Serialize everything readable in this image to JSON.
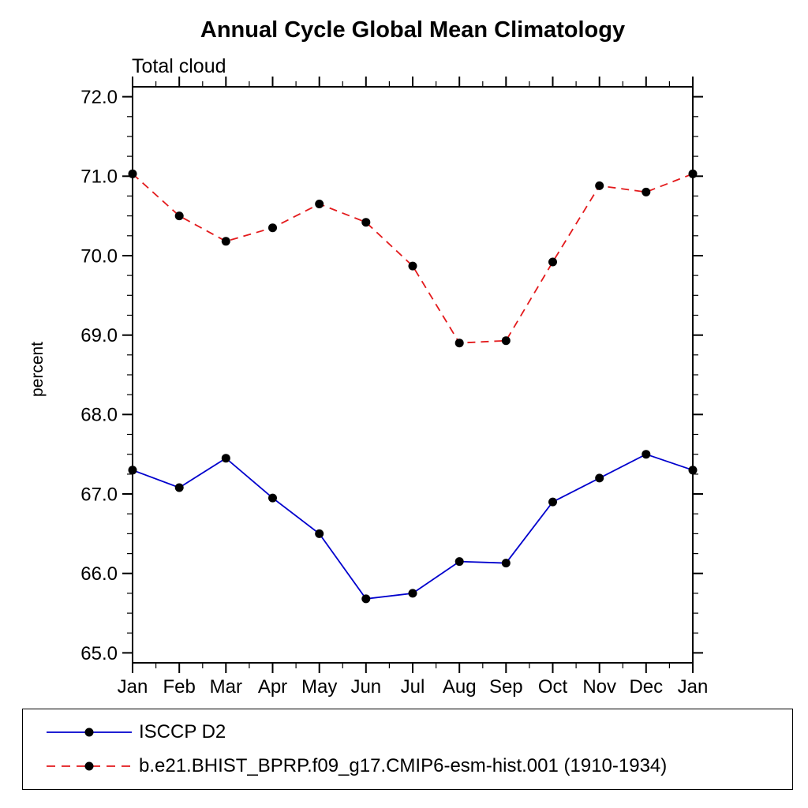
{
  "chart": {
    "title": "Annual Cycle Global Mean Climatology",
    "subtitle": "Total cloud",
    "ylabel": "percent"
  },
  "chart_data": {
    "type": "line",
    "title": "Annual Cycle Global Mean Climatology",
    "subtitle": "Total cloud",
    "xlabel": "",
    "ylabel": "percent",
    "categories": [
      "Jan",
      "Feb",
      "Mar",
      "Apr",
      "May",
      "Jun",
      "Jul",
      "Aug",
      "Sep",
      "Oct",
      "Nov",
      "Dec",
      "Jan"
    ],
    "ylim": [
      65.0,
      72.0
    ],
    "ytick_step": 1.0,
    "minor_ytick_step": 0.25,
    "ytick_labels": [
      "65.0",
      "66.0",
      "67.0",
      "68.0",
      "69.0",
      "70.0",
      "71.0",
      "72.0"
    ],
    "grid": false,
    "legend_position": "bottom-box",
    "frame_color": "#000000",
    "series": [
      {
        "name": "ISCCP D2",
        "line_color": "#0000cd",
        "line_style": "solid",
        "marker": "filled-circle",
        "marker_color": "#000000",
        "values": [
          67.3,
          67.08,
          67.45,
          66.95,
          66.5,
          65.68,
          65.75,
          66.15,
          66.13,
          66.9,
          67.2,
          67.5,
          67.3
        ]
      },
      {
        "name": "b.e21.BHIST_BPRP.f09_g17.CMIP6-esm-hist.001 (1910-1934)",
        "line_color": "#e31a1c",
        "line_style": "dashed",
        "marker": "filled-circle",
        "marker_color": "#000000",
        "values": [
          71.03,
          70.5,
          70.18,
          70.35,
          70.65,
          70.42,
          69.87,
          68.9,
          68.93,
          69.92,
          70.88,
          70.8,
          71.03
        ]
      }
    ]
  }
}
